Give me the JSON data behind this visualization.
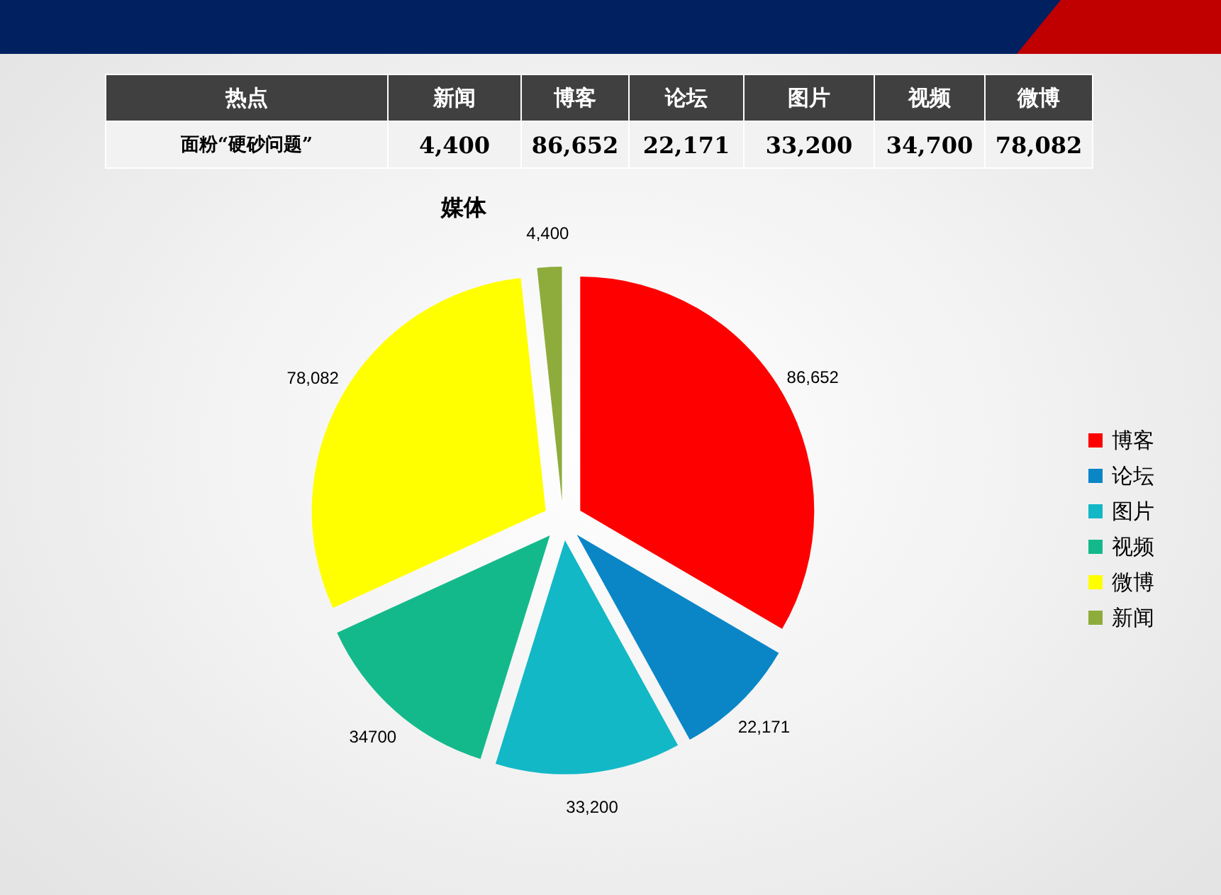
{
  "chart_data": [
    {
      "type": "other",
      "annotations": [
        "热点",
        "新闻",
        "博客",
        "论坛",
        "图片",
        "视频",
        "微博",
        "面粉“硬砂问题”",
        "4,400",
        "86,652",
        "22,171",
        "33,200",
        "34,700",
        "78,082"
      ]
    },
    {
      "type": "pie",
      "title": "媒体",
      "categories": [
        "博客",
        "论坛",
        "图片",
        "视频",
        "微博",
        "新闻"
      ],
      "values": [
        86652,
        22171,
        33200,
        34700,
        78082,
        4400
      ],
      "colors": [
        "#ff0000",
        "#0a86c7",
        "#12b8c6",
        "#14b98b",
        "#ffff00",
        "#8eac3c"
      ],
      "value_labels": [
        "86,652",
        "22,171",
        "33,200",
        "34700",
        "78,082",
        "4,400"
      ],
      "legend": "right"
    }
  ]
}
